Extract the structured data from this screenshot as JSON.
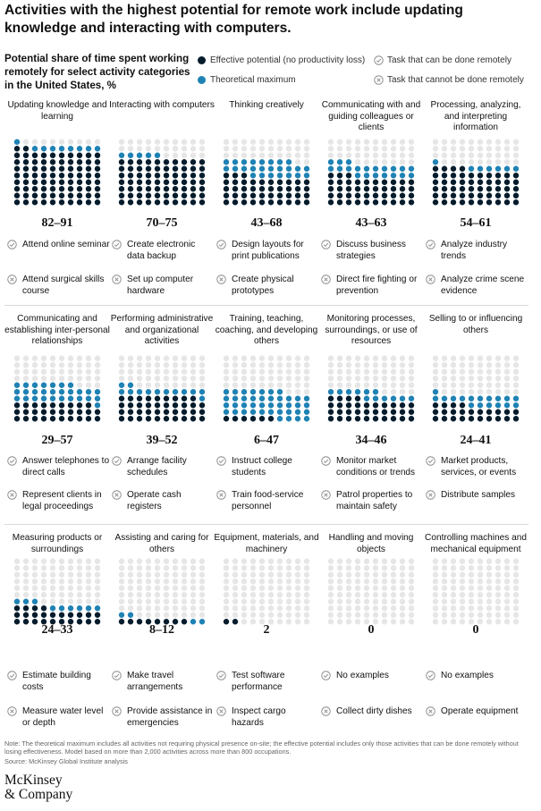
{
  "headline": "Activities with the highest potential for remote work include updating knowledge and interacting with computers.",
  "subtitle": "Potential share of time spent working remotely for select activity categories in the United States, %",
  "legend": {
    "effective": "Effective potential (no productivity loss)",
    "theoretical": "Theoretical maximum",
    "can_remote": "Task that can be done remotely",
    "cannot_remote": "Task that cannot be done remotely"
  },
  "colors": {
    "effective": "#051c2c",
    "theoretical": "#1f82b4",
    "remaining": "#e6e6e6",
    "icon": "#8a8a8a"
  },
  "chart_data": {
    "type": "dot-matrix",
    "unit": "%",
    "categories": [
      {
        "title": "Updating knowledge and learning",
        "effective": 82,
        "theoretical": 91,
        "range": "82–91",
        "can": "Attend online seminar",
        "cannot": "Attend surgical skills course"
      },
      {
        "title": "Interacting with computers",
        "effective": 70,
        "theoretical": 75,
        "range": "70–75",
        "can": "Create electronic data backup",
        "cannot": "Set up computer hardware"
      },
      {
        "title": "Thinking creatively",
        "effective": 43,
        "theoretical": 68,
        "range": "43–68",
        "can": "Design layouts for print publications",
        "cannot": "Create physical prototypes"
      },
      {
        "title": "Communicating with and guiding colleagues or clients",
        "effective": 43,
        "theoretical": 63,
        "range": "43–63",
        "can": "Discuss business strategies",
        "cannot": "Direct fire fighting or prevention"
      },
      {
        "title": "Processing, analyzing, and interpreting information",
        "effective": 54,
        "theoretical": 61,
        "range": "54–61",
        "can": "Analyze industry trends",
        "cannot": "Analyze crime scene evidence"
      },
      {
        "title": "Communicating and establishing inter-personal relationships",
        "effective": 29,
        "theoretical": 57,
        "range": "29–57",
        "can": "Answer telephones to direct calls",
        "cannot": "Represent clients in legal proceedings"
      },
      {
        "title": "Performing administrative and organizational activities",
        "effective": 39,
        "theoretical": 52,
        "range": "39–52",
        "can": "Arrange facility schedules",
        "cannot": "Operate cash registers"
      },
      {
        "title": "Training, teaching, coaching, and developing others",
        "effective": 6,
        "theoretical": 47,
        "range": "6–47",
        "can": "Instruct college students",
        "cannot": "Train food-service personnel"
      },
      {
        "title": "Monitoring processes, surroundings, or use of resources",
        "effective": 34,
        "theoretical": 46,
        "range": "34–46",
        "can": "Monitor market conditions or trends",
        "cannot": "Patrol properties to maintain safety"
      },
      {
        "title": "Selling to or influencing others",
        "effective": 24,
        "theoretical": 41,
        "range": "24–41",
        "can": "Market products, services, or events",
        "cannot": "Distribute samples"
      },
      {
        "title": "Measuring products or surroundings",
        "effective": 24,
        "theoretical": 33,
        "range": "24–33",
        "can": "Estimate building costs",
        "cannot": "Measure water level or depth"
      },
      {
        "title": "Assisting and caring for others",
        "effective": 8,
        "theoretical": 12,
        "range": "8–12",
        "can": "Make travel arrangements",
        "cannot": "Provide assistance in emergencies"
      },
      {
        "title": "Equipment, materials, and machinery",
        "effective": 2,
        "theoretical": 2,
        "range": "2",
        "can": "Test software performance",
        "cannot": "Inspect cargo hazards"
      },
      {
        "title": "Handling and moving objects",
        "effective": 0,
        "theoretical": 0,
        "range": "0",
        "can": "No examples",
        "cannot": "Collect dirty dishes"
      },
      {
        "title": "Controlling machines and mechanical equipment",
        "effective": 0,
        "theoretical": 0,
        "range": "0",
        "can": "No examples",
        "cannot": "Operate equipment"
      }
    ]
  },
  "footnote": "Note: The theoretical maximum includes all activities not requiring physical presence on-site; the effective potential includes only those activities that can be done remotely without losing effectiveness. Model based on more than 2,000 activities across more than 800 occupations.",
  "source": "Source: McKinsey Global Institute analysis",
  "logo": "McKinsey & Company"
}
